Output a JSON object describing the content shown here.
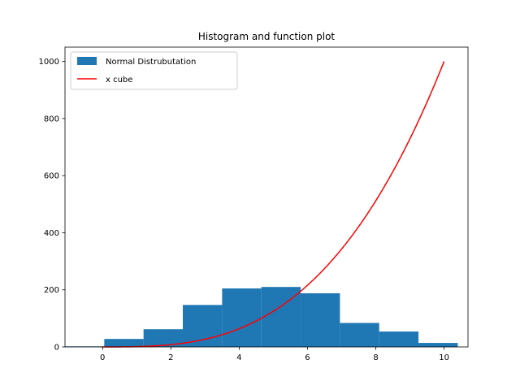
{
  "chart_data": {
    "type": "bar",
    "title": "Histogram and function plot",
    "xlabel": "",
    "ylabel": "",
    "xlim": [
      -1.1,
      10.7
    ],
    "ylim": [
      0,
      1050
    ],
    "x_ticks": [
      0,
      2,
      4,
      6,
      8,
      10
    ],
    "y_ticks": [
      0,
      200,
      400,
      600,
      800,
      1000
    ],
    "grid": false,
    "legend_position": "top-left",
    "histogram": {
      "name": "Normal Distrubutation",
      "color": "#1f77b4",
      "bin_edges": [
        -1.1,
        0.05,
        1.2,
        2.35,
        3.5,
        4.65,
        5.8,
        6.95,
        8.1,
        9.25,
        10.4
      ],
      "counts": [
        2,
        28,
        62,
        147,
        205,
        210,
        188,
        84,
        54,
        14
      ]
    },
    "function": {
      "name": "x cube",
      "color": "#ff0000",
      "expression": "x^3",
      "x_range": [
        0,
        10
      ]
    }
  }
}
